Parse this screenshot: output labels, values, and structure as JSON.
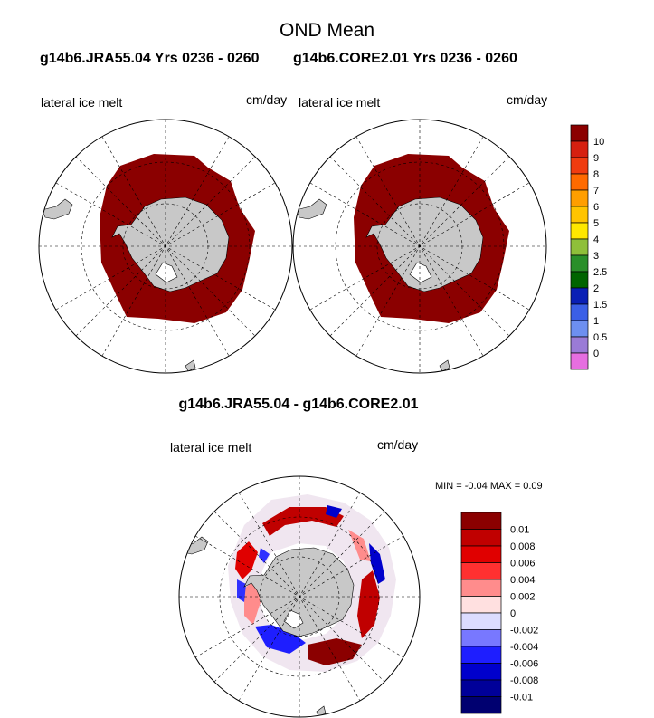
{
  "title": "OND Mean",
  "panels": {
    "left": {
      "header": "g14b6.JRA55.04  Yrs 0236 - 0260",
      "variable": "lateral ice melt",
      "units": "cm/day"
    },
    "right": {
      "header": "g14b6.CORE2.01  Yrs 0236 - 0260",
      "variable": "lateral ice melt",
      "units": "cm/day"
    },
    "diff": {
      "header": "g14b6.JRA55.04 - g14b6.CORE2.01",
      "variable": "lateral ice melt",
      "units": "cm/day",
      "minmax": "MIN =  -0.04 MAX =   0.09"
    }
  },
  "colorbar_top": {
    "labels": [
      "10",
      "9",
      "8",
      "7",
      "6",
      "5",
      "4",
      "3",
      "2.5",
      "2",
      "1.5",
      "1",
      "0.5",
      "0"
    ],
    "colors": [
      "#8b0000",
      "#d62010",
      "#f03c10",
      "#ff6a00",
      "#ff9e00",
      "#ffc400",
      "#ffe800",
      "#8fbf3a",
      "#2a8f2a",
      "#006400",
      "#0a1fb5",
      "#3b5fe6",
      "#6d8ff0",
      "#9a7bd6",
      "#e66ee0"
    ]
  },
  "colorbar_diff": {
    "labels": [
      "0.01",
      "0.008",
      "0.006",
      "0.004",
      "0.002",
      "0",
      "-0.002",
      "-0.004",
      "-0.006",
      "-0.008",
      "-0.01"
    ],
    "colors": [
      "#8b0000",
      "#c00000",
      "#e00000",
      "#ff3030",
      "#ff8c8c",
      "#ffe0e0",
      "#dcdcff",
      "#7878ff",
      "#1e1eff",
      "#0000cc",
      "#000099",
      "#000070"
    ]
  },
  "colors": {
    "land": "#c8c8c8",
    "melt_high": "#8b0000",
    "grid": "#000000"
  }
}
